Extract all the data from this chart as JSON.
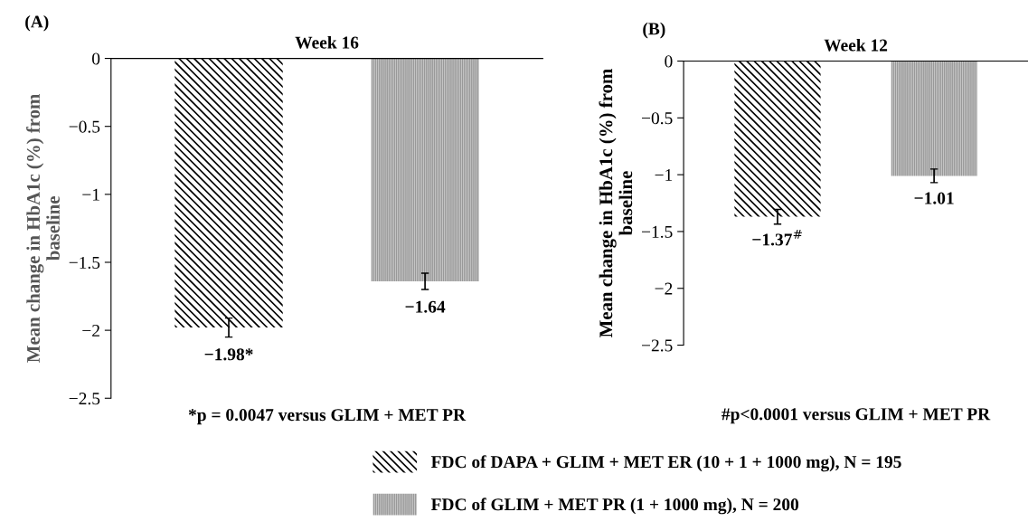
{
  "chart_data": [
    {
      "type": "bar",
      "title": "Week 16",
      "ylabel": "Mean change in HbA1c (%) from baseline",
      "categories": [
        null,
        null
      ],
      "series": [
        {
          "name": "FDC of DAPA + GLIM + MET ER (10 + 1 + 1000 mg), N = 195",
          "color": "#000000",
          "values": [
            -1.98,
            null
          ],
          "errors": [
            0.07,
            null
          ],
          "value_labels": [
            "−1.98*",
            null
          ]
        },
        {
          "name": "FDC of GLIM + MET PR (1 + 1000 mg), N = 200",
          "color": "#999999",
          "values": [
            null,
            -1.64
          ],
          "errors": [
            null,
            0.06
          ],
          "value_labels": [
            null,
            "−1.64"
          ]
        }
      ],
      "ylim": [
        -2.5,
        0
      ],
      "yticks": [
        {
          "value": -2.5,
          "label": "−2.5"
        },
        {
          "value": -2,
          "label": "−2"
        },
        {
          "value": -1.5,
          "label": "−1.5"
        },
        {
          "value": -1,
          "label": "−1"
        },
        {
          "value": -0.5,
          "label": "−0.5"
        },
        0
      ],
      "annotations": [
        "(A)",
        "*p = 0.0047 versus GLIM + MET PR"
      ],
      "legend": "bottom"
    },
    {
      "type": "bar",
      "title": "Week 12",
      "ylabel": "Mean change in HbA1c (%) from baseline",
      "categories": [
        null,
        null
      ],
      "series": [
        {
          "color": "#000000",
          "values": [
            -1.37,
            null
          ],
          "errors": [
            0.065,
            null
          ],
          "value_labels": [
            "−1.37$^{#}$",
            null
          ]
        },
        {
          "color": "#999999",
          "values": [
            null,
            -1.01
          ],
          "errors": [
            null,
            0.06
          ],
          "value_labels": [
            null,
            "−1.01"
          ]
        }
      ],
      "ylim": [
        -2.5,
        0
      ],
      "yticks": [
        {
          "value": -2.5,
          "label": "−2.5"
        },
        {
          "value": -2,
          "label": "−2"
        },
        {
          "value": -1.5,
          "label": "−1.5"
        },
        {
          "value": -1,
          "label": "−1"
        },
        {
          "value": -0.5,
          "label": "−0.5"
        },
        0
      ],
      "annotations": [
        "(B)",
        "#p<0.0001 versus GLIM + MET PR"
      ]
    }
  ]
}
